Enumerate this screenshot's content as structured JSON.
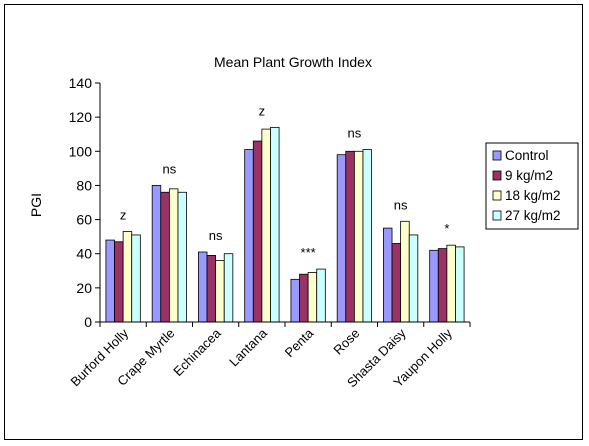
{
  "chart_data": {
    "type": "bar",
    "title": "Mean Plant Growth Index",
    "xlabel": "",
    "ylabel": "PGI",
    "ylim": [
      0,
      140
    ],
    "yticks": [
      0,
      20,
      40,
      60,
      80,
      100,
      120,
      140
    ],
    "grid": false,
    "legend_position": "right",
    "categories": [
      "Burford Holly",
      "Crape Myrtle",
      "Echinacea",
      "Lantana",
      "Penta",
      "Rose",
      "Shasta Daisy",
      "Yaupon Holly"
    ],
    "annotations": [
      "z",
      "ns",
      "ns",
      "z",
      "***",
      "ns",
      "ns",
      "*"
    ],
    "series": [
      {
        "name": "Control",
        "color": "#9999ff",
        "values": [
          48,
          80,
          41,
          101,
          25,
          98,
          55,
          42
        ]
      },
      {
        "name": "9 kg/m2",
        "color": "#993366",
        "values": [
          47,
          76,
          39,
          106,
          28,
          100,
          46,
          43
        ]
      },
      {
        "name": "18 kg/m2",
        "color": "#ffffcc",
        "values": [
          53,
          78,
          36,
          113,
          29,
          100,
          59,
          45
        ]
      },
      {
        "name": "27 kg/m2",
        "color": "#ccffff",
        "values": [
          51,
          76,
          40,
          114,
          31,
          101,
          51,
          44
        ]
      }
    ]
  }
}
